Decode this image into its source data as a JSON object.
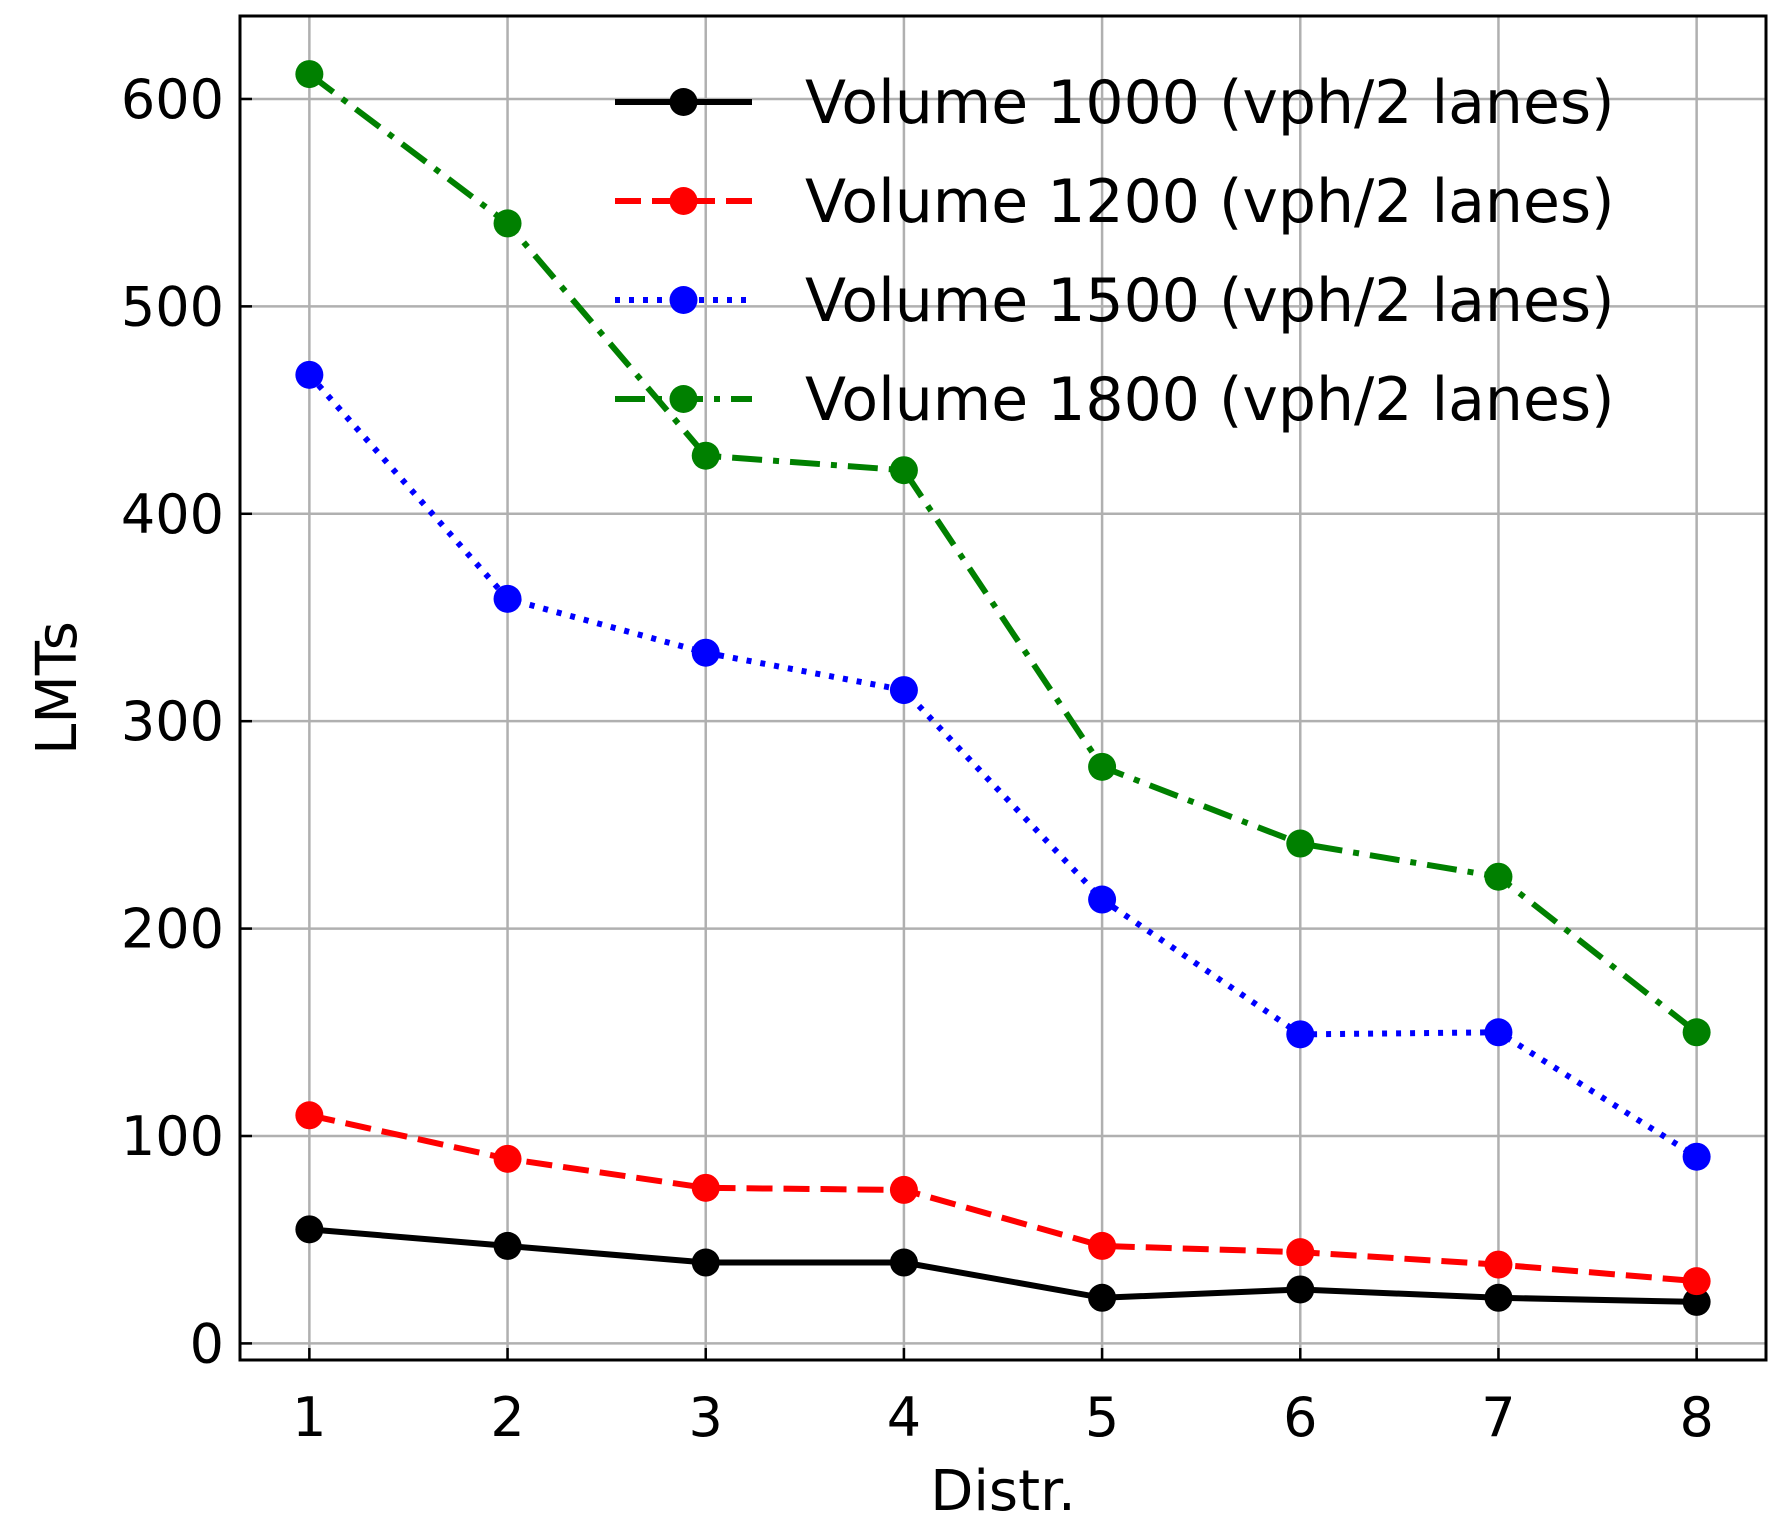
{
  "chart_data": {
    "type": "line",
    "xlabel": "Distr.",
    "ylabel": "LMTs",
    "x": [
      1,
      2,
      3,
      4,
      5,
      6,
      7,
      8
    ],
    "xticks": [
      "1",
      "2",
      "3",
      "4",
      "5",
      "6",
      "7",
      "8"
    ],
    "yticks": [
      "0",
      "100",
      "200",
      "300",
      "400",
      "500",
      "600"
    ],
    "xlim": [
      0.65,
      8.35
    ],
    "ylim": [
      -8,
      640
    ],
    "grid": true,
    "legend_position": "top-right",
    "series": [
      {
        "name": "Volume 1000 (vph/2 lanes)",
        "color": "#000000",
        "dash": "solid",
        "values": [
          55,
          47,
          39,
          39,
          22,
          26,
          22,
          20
        ]
      },
      {
        "name": "Volume 1200 (vph/2 lanes)",
        "color": "#ff0000",
        "dash": "dashed",
        "values": [
          110,
          89,
          75,
          74,
          47,
          44,
          38,
          30
        ]
      },
      {
        "name": "Volume 1500 (vph/2 lanes)",
        "color": "#0000ff",
        "dash": "dotted",
        "values": [
          467,
          359,
          333,
          315,
          214,
          149,
          150,
          90
        ]
      },
      {
        "name": "Volume 1800 (vph/2 lanes)",
        "color": "#008000",
        "dash": "dashdot",
        "values": [
          612,
          540,
          428,
          421,
          278,
          241,
          225,
          150
        ]
      }
    ]
  }
}
